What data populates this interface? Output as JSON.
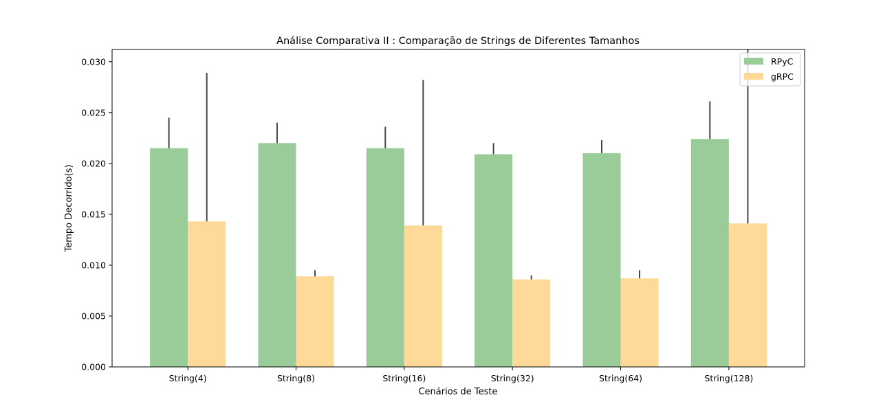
{
  "chart_data": {
    "type": "bar",
    "title": "Análise Comparativa II : Comparação de Strings de Diferentes Tamanhos",
    "xlabel": "Cenários de Teste",
    "ylabel": "Tempo Decorrido(s)",
    "ylim": [
      0,
      0.0312
    ],
    "yticks": [
      "0.000",
      "0.005",
      "0.010",
      "0.015",
      "0.020",
      "0.025",
      "0.030"
    ],
    "categories": [
      "String(4)",
      "String(8)",
      "String(16)",
      "String(32)",
      "String(64)",
      "String(128)"
    ],
    "series": [
      {
        "name": "RPyC",
        "color": "#99cc99",
        "values": [
          0.0215,
          0.022,
          0.0215,
          0.0209,
          0.021,
          0.0224
        ],
        "error_upper": [
          0.0245,
          0.024,
          0.0236,
          0.022,
          0.0223,
          0.0261
        ]
      },
      {
        "name": "gRPC",
        "color": "#fed998",
        "values": [
          0.0143,
          0.0089,
          0.0139,
          0.0086,
          0.0087,
          0.0141
        ],
        "error_upper": [
          0.0289,
          0.0095,
          0.0282,
          0.009,
          0.0095,
          0.0312
        ]
      }
    ],
    "grid": false,
    "legend_position": "top-right"
  }
}
